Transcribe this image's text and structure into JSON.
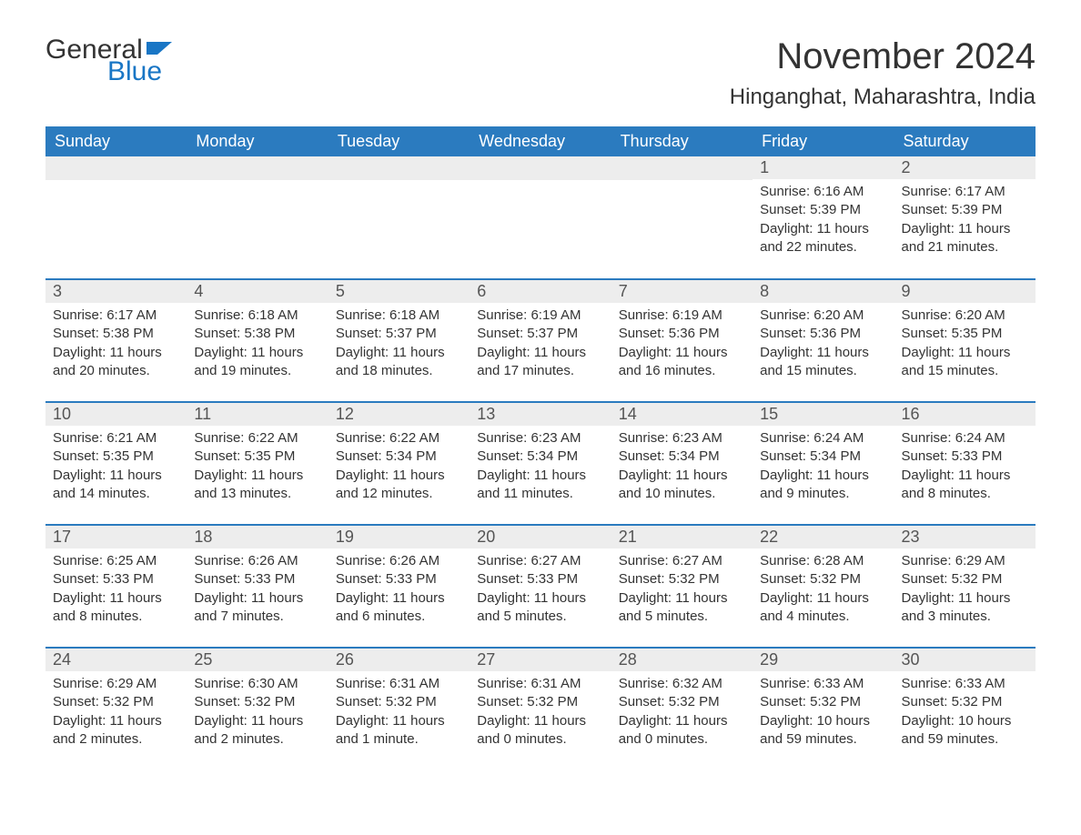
{
  "logo": {
    "word1": "General",
    "word2": "Blue"
  },
  "title": "November 2024",
  "location": "Hinganghat, Maharashtra, India",
  "colors": {
    "header_bg": "#2b7bbf",
    "header_text": "#ffffff",
    "daynum_bg": "#ededed",
    "row_border": "#2b7bbf",
    "logo_blue": "#1976c5",
    "body_text": "#333333",
    "page_bg": "#ffffff"
  },
  "weekdays": [
    "Sunday",
    "Monday",
    "Tuesday",
    "Wednesday",
    "Thursday",
    "Friday",
    "Saturday"
  ],
  "weeks": [
    [
      null,
      null,
      null,
      null,
      null,
      {
        "n": "1",
        "sunrise": "Sunrise: 6:16 AM",
        "sunset": "Sunset: 5:39 PM",
        "daylight": "Daylight: 11 hours and 22 minutes."
      },
      {
        "n": "2",
        "sunrise": "Sunrise: 6:17 AM",
        "sunset": "Sunset: 5:39 PM",
        "daylight": "Daylight: 11 hours and 21 minutes."
      }
    ],
    [
      {
        "n": "3",
        "sunrise": "Sunrise: 6:17 AM",
        "sunset": "Sunset: 5:38 PM",
        "daylight": "Daylight: 11 hours and 20 minutes."
      },
      {
        "n": "4",
        "sunrise": "Sunrise: 6:18 AM",
        "sunset": "Sunset: 5:38 PM",
        "daylight": "Daylight: 11 hours and 19 minutes."
      },
      {
        "n": "5",
        "sunrise": "Sunrise: 6:18 AM",
        "sunset": "Sunset: 5:37 PM",
        "daylight": "Daylight: 11 hours and 18 minutes."
      },
      {
        "n": "6",
        "sunrise": "Sunrise: 6:19 AM",
        "sunset": "Sunset: 5:37 PM",
        "daylight": "Daylight: 11 hours and 17 minutes."
      },
      {
        "n": "7",
        "sunrise": "Sunrise: 6:19 AM",
        "sunset": "Sunset: 5:36 PM",
        "daylight": "Daylight: 11 hours and 16 minutes."
      },
      {
        "n": "8",
        "sunrise": "Sunrise: 6:20 AM",
        "sunset": "Sunset: 5:36 PM",
        "daylight": "Daylight: 11 hours and 15 minutes."
      },
      {
        "n": "9",
        "sunrise": "Sunrise: 6:20 AM",
        "sunset": "Sunset: 5:35 PM",
        "daylight": "Daylight: 11 hours and 15 minutes."
      }
    ],
    [
      {
        "n": "10",
        "sunrise": "Sunrise: 6:21 AM",
        "sunset": "Sunset: 5:35 PM",
        "daylight": "Daylight: 11 hours and 14 minutes."
      },
      {
        "n": "11",
        "sunrise": "Sunrise: 6:22 AM",
        "sunset": "Sunset: 5:35 PM",
        "daylight": "Daylight: 11 hours and 13 minutes."
      },
      {
        "n": "12",
        "sunrise": "Sunrise: 6:22 AM",
        "sunset": "Sunset: 5:34 PM",
        "daylight": "Daylight: 11 hours and 12 minutes."
      },
      {
        "n": "13",
        "sunrise": "Sunrise: 6:23 AM",
        "sunset": "Sunset: 5:34 PM",
        "daylight": "Daylight: 11 hours and 11 minutes."
      },
      {
        "n": "14",
        "sunrise": "Sunrise: 6:23 AM",
        "sunset": "Sunset: 5:34 PM",
        "daylight": "Daylight: 11 hours and 10 minutes."
      },
      {
        "n": "15",
        "sunrise": "Sunrise: 6:24 AM",
        "sunset": "Sunset: 5:34 PM",
        "daylight": "Daylight: 11 hours and 9 minutes."
      },
      {
        "n": "16",
        "sunrise": "Sunrise: 6:24 AM",
        "sunset": "Sunset: 5:33 PM",
        "daylight": "Daylight: 11 hours and 8 minutes."
      }
    ],
    [
      {
        "n": "17",
        "sunrise": "Sunrise: 6:25 AM",
        "sunset": "Sunset: 5:33 PM",
        "daylight": "Daylight: 11 hours and 8 minutes."
      },
      {
        "n": "18",
        "sunrise": "Sunrise: 6:26 AM",
        "sunset": "Sunset: 5:33 PM",
        "daylight": "Daylight: 11 hours and 7 minutes."
      },
      {
        "n": "19",
        "sunrise": "Sunrise: 6:26 AM",
        "sunset": "Sunset: 5:33 PM",
        "daylight": "Daylight: 11 hours and 6 minutes."
      },
      {
        "n": "20",
        "sunrise": "Sunrise: 6:27 AM",
        "sunset": "Sunset: 5:33 PM",
        "daylight": "Daylight: 11 hours and 5 minutes."
      },
      {
        "n": "21",
        "sunrise": "Sunrise: 6:27 AM",
        "sunset": "Sunset: 5:32 PM",
        "daylight": "Daylight: 11 hours and 5 minutes."
      },
      {
        "n": "22",
        "sunrise": "Sunrise: 6:28 AM",
        "sunset": "Sunset: 5:32 PM",
        "daylight": "Daylight: 11 hours and 4 minutes."
      },
      {
        "n": "23",
        "sunrise": "Sunrise: 6:29 AM",
        "sunset": "Sunset: 5:32 PM",
        "daylight": "Daylight: 11 hours and 3 minutes."
      }
    ],
    [
      {
        "n": "24",
        "sunrise": "Sunrise: 6:29 AM",
        "sunset": "Sunset: 5:32 PM",
        "daylight": "Daylight: 11 hours and 2 minutes."
      },
      {
        "n": "25",
        "sunrise": "Sunrise: 6:30 AM",
        "sunset": "Sunset: 5:32 PM",
        "daylight": "Daylight: 11 hours and 2 minutes."
      },
      {
        "n": "26",
        "sunrise": "Sunrise: 6:31 AM",
        "sunset": "Sunset: 5:32 PM",
        "daylight": "Daylight: 11 hours and 1 minute."
      },
      {
        "n": "27",
        "sunrise": "Sunrise: 6:31 AM",
        "sunset": "Sunset: 5:32 PM",
        "daylight": "Daylight: 11 hours and 0 minutes."
      },
      {
        "n": "28",
        "sunrise": "Sunrise: 6:32 AM",
        "sunset": "Sunset: 5:32 PM",
        "daylight": "Daylight: 11 hours and 0 minutes."
      },
      {
        "n": "29",
        "sunrise": "Sunrise: 6:33 AM",
        "sunset": "Sunset: 5:32 PM",
        "daylight": "Daylight: 10 hours and 59 minutes."
      },
      {
        "n": "30",
        "sunrise": "Sunrise: 6:33 AM",
        "sunset": "Sunset: 5:32 PM",
        "daylight": "Daylight: 10 hours and 59 minutes."
      }
    ]
  ]
}
